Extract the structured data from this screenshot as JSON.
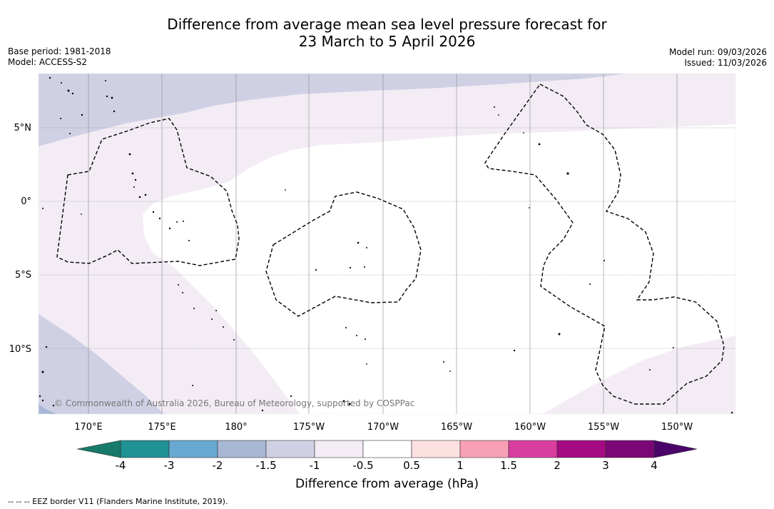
{
  "title_line1": "Difference from average mean sea level pressure forecast for",
  "title_line2": "23 March to 5 April 2026",
  "base_period": "Base period: 1981-2018",
  "model": "Model: ACCESS-S2",
  "model_run": "Model run: 09/03/2026",
  "issued": "Issued: 11/03/2026",
  "lat_labels": [
    "5°N",
    "0°",
    "5°S",
    "10°S"
  ],
  "lon_labels": [
    "170°E",
    "175°E",
    "180°",
    "175°W",
    "170°W",
    "165°W",
    "160°W",
    "155°W",
    "150°W"
  ],
  "copyright": "© Commonwealth of Australia 2026, Bureau of Meteorology, supported by COSPPac",
  "colorbar": {
    "title": "Difference from average (hPa)",
    "ticks": [
      "-4",
      "-3",
      "-2",
      "-1.5",
      "-1",
      "-0.5",
      "0.5",
      "1",
      "1.5",
      "2",
      "3",
      "4"
    ],
    "colors": [
      "#1f9294",
      "#68a9d2",
      "#a7b7d4",
      "#cfd0e4",
      "#f3ecf5",
      "#ffffff",
      "#fde1e0",
      "#f8a0b5",
      "#d93ea0",
      "#a60a83",
      "#7b0676"
    ],
    "low_color": "#177a6a",
    "high_color": "#4a0569"
  },
  "footnote": "--  --  -- EEZ border V11 (Flanders Marine Institute, 2019)."
}
